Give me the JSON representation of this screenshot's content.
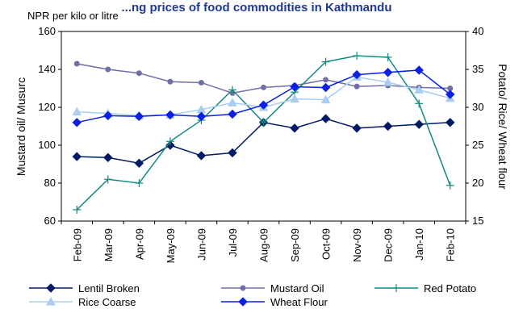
{
  "chart_data": {
    "type": "line",
    "title": "...ng prices of food commodities in Kathmandu",
    "unit_label": "NPR per kilo or litre",
    "ylabel": "Mustard oil/ Musurc",
    "y2label": "Potato/ Rice/ Wheat flour",
    "ylim": [
      60,
      160
    ],
    "y2lim": [
      15,
      40
    ],
    "yticks": [
      "60",
      "80",
      "100",
      "120",
      "140",
      "160"
    ],
    "y2ticks": [
      "15",
      "20",
      "25",
      "30",
      "35",
      "40"
    ],
    "categories": [
      "Feb-09",
      "Mar-09",
      "Apr-09",
      "May-09",
      "Jun-09",
      "Jul-09",
      "Aug-09",
      "Sep-09",
      "Oct-09",
      "Nov-09",
      "Dec-09",
      "Jan-10",
      "Feb-10"
    ],
    "legend_placement": "bottom",
    "series": [
      {
        "name": "Lentil Broken",
        "axis": "left",
        "color": "#001a66",
        "marker": "diamond",
        "values": [
          94,
          93.5,
          90.5,
          100,
          94.5,
          96,
          112,
          109,
          114,
          109,
          110,
          111,
          112
        ]
      },
      {
        "name": "Mustard Oil",
        "axis": "left",
        "color": "#6f6fa8",
        "marker": "circle",
        "values": [
          143,
          140,
          138,
          133.5,
          133,
          127.5,
          130.5,
          131.5,
          134.5,
          131,
          131.5,
          130.5,
          130
        ]
      },
      {
        "name": "Red Potato",
        "axis": "right",
        "color": "#138a80",
        "marker": "plus",
        "values": [
          16.5,
          20.5,
          20,
          25.5,
          28.3,
          32.3,
          28,
          32,
          36,
          36.8,
          36.6,
          30.5,
          19.7
        ]
      },
      {
        "name": "Rice Coarse",
        "axis": "right",
        "color": "#a8cdf0",
        "marker": "triangle",
        "values": [
          29.4,
          29.2,
          28.9,
          29,
          29.7,
          30.6,
          30,
          31.1,
          31,
          34,
          33.3,
          32.3,
          31.2
        ]
      },
      {
        "name": "Wheat Flour",
        "axis": "right",
        "color": "#0a1fe8",
        "marker": "diamond",
        "values": [
          28,
          28.9,
          28.8,
          29,
          28.8,
          29.1,
          30.3,
          32.7,
          32.6,
          34.3,
          34.6,
          34.9,
          31.7
        ]
      }
    ]
  }
}
